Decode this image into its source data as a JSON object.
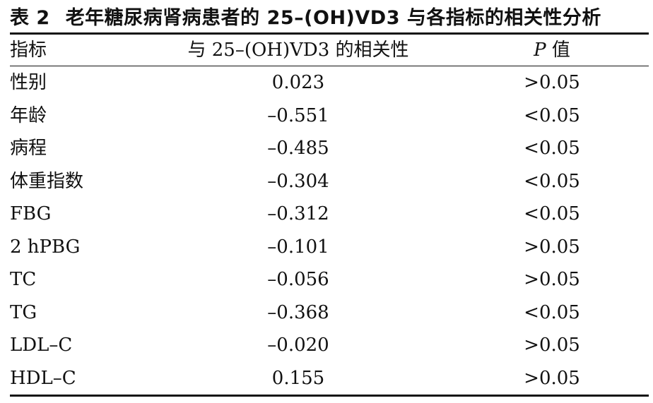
{
  "caption": {
    "number": "表 2",
    "title": "老年糖尿病肾病患者的 25–(OH)VD3 与各指标的相关性分析"
  },
  "columns": {
    "indicator": "指标",
    "correlation": "与 25–(OH)VD3 的相关性",
    "p_italic": "P",
    "p_suffix": " 值"
  },
  "rows": [
    {
      "indicator": "性别",
      "correlation": "0.023",
      "p": ">0.05"
    },
    {
      "indicator": "年龄",
      "correlation": "–0.551",
      "p": "<0.05"
    },
    {
      "indicator": "病程",
      "correlation": "–0.485",
      "p": "<0.05"
    },
    {
      "indicator": "体重指数",
      "correlation": "–0.304",
      "p": "<0.05"
    },
    {
      "indicator": "FBG",
      "correlation": "–0.312",
      "p": "<0.05"
    },
    {
      "indicator": "2 hPBG",
      "correlation": "–0.101",
      "p": ">0.05"
    },
    {
      "indicator": "TC",
      "correlation": "–0.056",
      "p": ">0.05"
    },
    {
      "indicator": "TG",
      "correlation": "–0.368",
      "p": "<0.05"
    },
    {
      "indicator": "LDL–C",
      "correlation": "–0.020",
      "p": ">0.05"
    },
    {
      "indicator": "HDL–C",
      "correlation": "0.155",
      "p": ">0.05"
    }
  ]
}
